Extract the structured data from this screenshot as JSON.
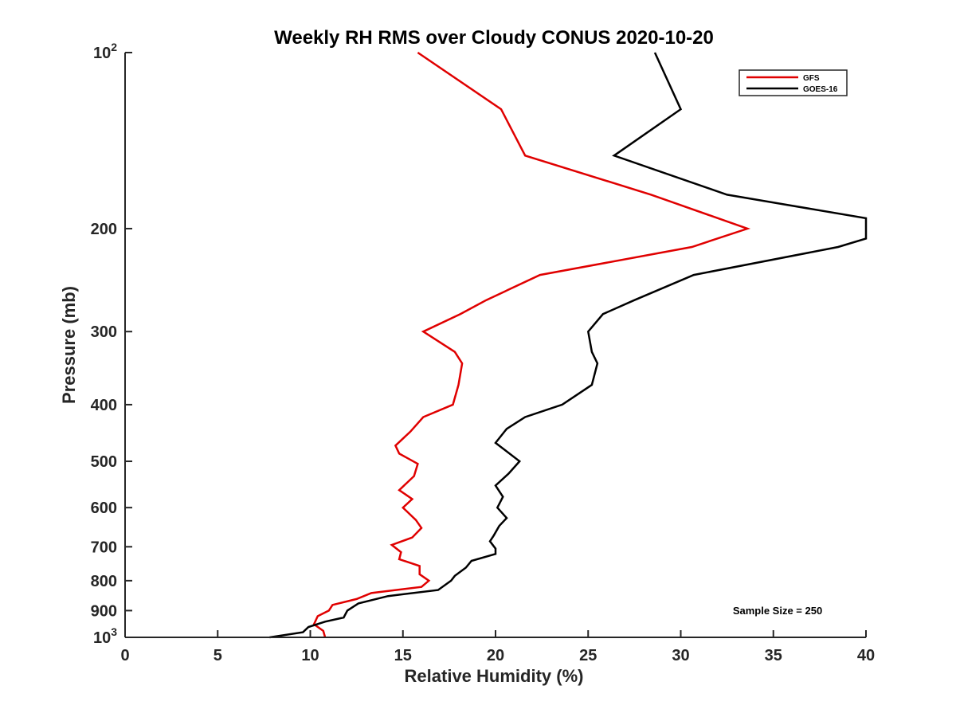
{
  "chart_data": {
    "type": "line",
    "title": "Weekly RH RMS over Cloudy CONUS 2020-10-20",
    "xlabel": "Relative Humidity (%)",
    "ylabel": "Pressure (mb)",
    "xlim": [
      0,
      40
    ],
    "ylim": [
      100,
      1000
    ],
    "yscale": "log",
    "y_reversed": true,
    "grid": false,
    "legend_position": "top-right",
    "x_ticks": [
      {
        "value": 0,
        "label": "0"
      },
      {
        "value": 5,
        "label": "5"
      },
      {
        "value": 10,
        "label": "10"
      },
      {
        "value": 15,
        "label": "15"
      },
      {
        "value": 20,
        "label": "20"
      },
      {
        "value": 25,
        "label": "25"
      },
      {
        "value": 30,
        "label": "30"
      },
      {
        "value": 35,
        "label": "35"
      },
      {
        "value": 40,
        "label": "40"
      }
    ],
    "y_ticks": [
      {
        "value": 100,
        "base": "10",
        "exp": "2"
      },
      {
        "value": 200,
        "label": "200"
      },
      {
        "value": 300,
        "label": "300"
      },
      {
        "value": 400,
        "label": "400"
      },
      {
        "value": 500,
        "label": "500"
      },
      {
        "value": 600,
        "label": "600"
      },
      {
        "value": 700,
        "label": "700"
      },
      {
        "value": 800,
        "label": "800"
      },
      {
        "value": 900,
        "label": "900"
      },
      {
        "value": 1000,
        "base": "10",
        "exp": "3"
      }
    ],
    "series": [
      {
        "name": "GFS",
        "color": "#e00000",
        "points": [
          [
            15.8,
            100
          ],
          [
            20.3,
            125
          ],
          [
            21.6,
            150
          ],
          [
            28.4,
            175
          ],
          [
            31.6,
            190
          ],
          [
            33.6,
            200
          ],
          [
            30.6,
            215
          ],
          [
            22.4,
            240
          ],
          [
            19.5,
            265
          ],
          [
            18.1,
            280
          ],
          [
            16.1,
            300
          ],
          [
            17.8,
            325
          ],
          [
            18.2,
            340
          ],
          [
            18.0,
            370
          ],
          [
            17.7,
            400
          ],
          [
            16.1,
            420
          ],
          [
            15.4,
            445
          ],
          [
            14.6,
            470
          ],
          [
            14.8,
            485
          ],
          [
            15.8,
            505
          ],
          [
            15.6,
            530
          ],
          [
            14.8,
            560
          ],
          [
            15.5,
            580
          ],
          [
            15.0,
            600
          ],
          [
            15.7,
            630
          ],
          [
            16.0,
            650
          ],
          [
            15.5,
            675
          ],
          [
            14.4,
            695
          ],
          [
            14.9,
            715
          ],
          [
            14.8,
            735
          ],
          [
            15.9,
            755
          ],
          [
            15.9,
            780
          ],
          [
            16.4,
            800
          ],
          [
            16.0,
            820
          ],
          [
            13.3,
            840
          ],
          [
            12.5,
            860
          ],
          [
            11.2,
            880
          ],
          [
            11.0,
            900
          ],
          [
            10.4,
            920
          ],
          [
            10.2,
            950
          ],
          [
            10.7,
            975
          ],
          [
            10.8,
            1000
          ]
        ]
      },
      {
        "name": "GOES-16",
        "color": "#000000",
        "points": [
          [
            28.6,
            100
          ],
          [
            30.0,
            125
          ],
          [
            26.4,
            150
          ],
          [
            32.5,
            175
          ],
          [
            40.0,
            192
          ],
          [
            40.0,
            208
          ],
          [
            38.5,
            215
          ],
          [
            30.7,
            240
          ],
          [
            27.5,
            265
          ],
          [
            25.8,
            280
          ],
          [
            25.0,
            300
          ],
          [
            25.2,
            325
          ],
          [
            25.5,
            340
          ],
          [
            25.2,
            370
          ],
          [
            23.6,
            400
          ],
          [
            21.6,
            420
          ],
          [
            20.6,
            440
          ],
          [
            20.0,
            465
          ],
          [
            21.3,
            500
          ],
          [
            20.7,
            525
          ],
          [
            20.0,
            550
          ],
          [
            20.4,
            575
          ],
          [
            20.1,
            600
          ],
          [
            20.6,
            625
          ],
          [
            20.2,
            645
          ],
          [
            19.9,
            670
          ],
          [
            19.7,
            685
          ],
          [
            20.0,
            705
          ],
          [
            20.0,
            720
          ],
          [
            18.7,
            740
          ],
          [
            18.4,
            760
          ],
          [
            17.8,
            785
          ],
          [
            17.6,
            800
          ],
          [
            16.9,
            830
          ],
          [
            14.2,
            850
          ],
          [
            12.6,
            875
          ],
          [
            12.0,
            900
          ],
          [
            11.8,
            925
          ],
          [
            10.8,
            940
          ],
          [
            9.9,
            960
          ],
          [
            9.6,
            980
          ],
          [
            7.8,
            1000
          ]
        ]
      }
    ],
    "annotations": [
      "Sample Size = 250"
    ]
  }
}
